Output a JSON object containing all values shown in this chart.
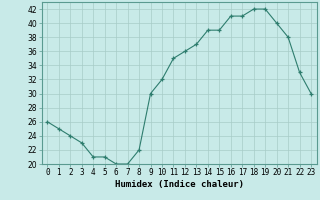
{
  "xlabel": "Humidex (Indice chaleur)",
  "ylabel": "",
  "x": [
    0,
    1,
    2,
    3,
    4,
    5,
    6,
    7,
    8,
    9,
    10,
    11,
    12,
    13,
    14,
    15,
    16,
    17,
    18,
    19,
    20,
    21,
    22,
    23
  ],
  "y": [
    26,
    25,
    24,
    23,
    21,
    21,
    20,
    20,
    22,
    30,
    32,
    35,
    36,
    37,
    39,
    39,
    41,
    41,
    42,
    42,
    40,
    38,
    33,
    30
  ],
  "xlim": [
    -0.5,
    23.5
  ],
  "ylim": [
    20,
    43
  ],
  "yticks": [
    20,
    22,
    24,
    26,
    28,
    30,
    32,
    34,
    36,
    38,
    40,
    42
  ],
  "xtick_labels": [
    "0",
    "1",
    "2",
    "3",
    "4",
    "5",
    "6",
    "7",
    "8",
    "9",
    "10",
    "11",
    "12",
    "13",
    "14",
    "15",
    "16",
    "17",
    "18",
    "19",
    "20",
    "21",
    "22",
    "23"
  ],
  "line_color": "#2e7d6e",
  "marker_color": "#2e7d6e",
  "bg_color": "#c8eae8",
  "grid_color": "#a8ccc8",
  "xlabel_fontsize": 6.5,
  "tick_fontsize": 5.5
}
